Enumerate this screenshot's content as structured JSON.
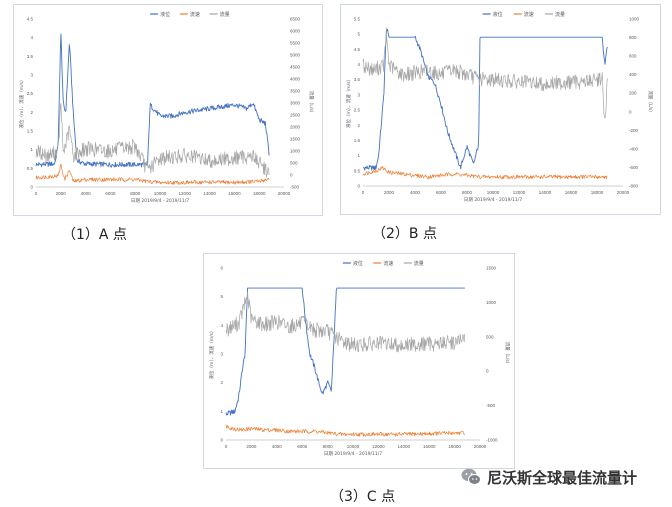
{
  "captions": {
    "a": "（1）A 点",
    "b": "（2）B 点",
    "c": "（3）C 点"
  },
  "watermark": {
    "text": "尼沃斯全球最佳流量计",
    "logo_icon": "wechat-icon"
  },
  "colors": {
    "level": "#4472C4",
    "velocity": "#ED7D31",
    "flow": "#A5A5A5"
  },
  "chart_data": [
    {
      "id": "A",
      "type": "line",
      "legend": [
        "液位",
        "流速",
        "流量"
      ],
      "xlabel": "日期 2019/9/4 - 2019/11/7",
      "ylabel_left": "液位（m）、流速（m/s）",
      "ylabel_right": "流量（L/s）",
      "xlim": [
        0,
        20000
      ],
      "x_ticks": [
        "0",
        "2000",
        "4000",
        "6000",
        "8000",
        "10000",
        "12000",
        "14000",
        "16000",
        "18000",
        "20000"
      ],
      "ylim_left": [
        0,
        4.5
      ],
      "y_ticks_left": [
        "0",
        "0.5",
        "1",
        "1.5",
        "2",
        "2.5",
        "3",
        "3.5",
        "4",
        "4.5"
      ],
      "ylim_right": [
        -500,
        6500
      ],
      "y_ticks_right": [
        "-500",
        "0",
        "500",
        "1000",
        "1500",
        "2000",
        "2500",
        "3000",
        "3500",
        "4000",
        "4500",
        "5000",
        "5500",
        "6000",
        "6500"
      ],
      "series": [
        {
          "name": "液位",
          "axis": "left",
          "points": [
            [
              0,
              0.6
            ],
            [
              1500,
              0.62
            ],
            [
              1800,
              1.2
            ],
            [
              2000,
              4.2
            ],
            [
              2200,
              2.2
            ],
            [
              2400,
              2.0
            ],
            [
              2700,
              3.9
            ],
            [
              3000,
              2.0
            ],
            [
              3300,
              0.7
            ],
            [
              4000,
              0.62
            ],
            [
              6000,
              0.6
            ],
            [
              8000,
              0.6
            ],
            [
              9000,
              0.6
            ],
            [
              9200,
              2.2
            ],
            [
              10000,
              1.9
            ],
            [
              11000,
              1.9
            ],
            [
              12000,
              2.0
            ],
            [
              13000,
              2.05
            ],
            [
              14000,
              2.1
            ],
            [
              15000,
              2.15
            ],
            [
              16000,
              2.2
            ],
            [
              17000,
              2.1
            ],
            [
              17500,
              2.25
            ],
            [
              18000,
              1.8
            ],
            [
              18500,
              1.7
            ],
            [
              18800,
              0.9
            ]
          ]
        },
        {
          "name": "流速",
          "axis": "left",
          "points": [
            [
              0,
              0.25
            ],
            [
              1800,
              0.3
            ],
            [
              2000,
              0.6
            ],
            [
              2300,
              0.2
            ],
            [
              2700,
              0.45
            ],
            [
              3000,
              0.15
            ],
            [
              4000,
              0.2
            ],
            [
              6000,
              0.2
            ],
            [
              8000,
              0.2
            ],
            [
              9000,
              0.15
            ],
            [
              10000,
              0.12
            ],
            [
              12000,
              0.12
            ],
            [
              14000,
              0.13
            ],
            [
              16000,
              0.12
            ],
            [
              18000,
              0.15
            ],
            [
              18800,
              0.22
            ]
          ]
        },
        {
          "name": "流量",
          "axis": "right",
          "points": [
            [
              0,
              1000
            ],
            [
              1000,
              800
            ],
            [
              1800,
              1000
            ],
            [
              2000,
              3000
            ],
            [
              2200,
              900
            ],
            [
              2700,
              1900
            ],
            [
              3000,
              800
            ],
            [
              4000,
              1100
            ],
            [
              6000,
              1000
            ],
            [
              8000,
              1200
            ],
            [
              9000,
              200
            ],
            [
              10000,
              700
            ],
            [
              12000,
              800
            ],
            [
              14000,
              600
            ],
            [
              16000,
              700
            ],
            [
              17500,
              800
            ],
            [
              18000,
              500
            ],
            [
              18800,
              100
            ]
          ]
        }
      ]
    },
    {
      "id": "B",
      "type": "line",
      "legend": [
        "液位",
        "流速",
        "流量"
      ],
      "xlabel": "日期 2019/9/4 - 2019/11/7",
      "ylabel_left": "液位（m）、流速（m/s）",
      "ylabel_right": "流量（L/s）",
      "xlim": [
        0,
        20000
      ],
      "x_ticks": [
        "0",
        "2000",
        "4000",
        "6000",
        "8000",
        "10000",
        "12000",
        "14000",
        "16000",
        "18000",
        "20000"
      ],
      "ylim_left": [
        0,
        5.5
      ],
      "y_ticks_left": [
        "0",
        "0.5",
        "1",
        "1.5",
        "2",
        "2.5",
        "3",
        "3.5",
        "4",
        "4.5",
        "5",
        "5.5"
      ],
      "ylim_right": [
        -800,
        1000
      ],
      "y_ticks_right": [
        "-800",
        "-600",
        "-400",
        "-200",
        "0",
        "200",
        "400",
        "600",
        "800",
        "1000"
      ],
      "series": [
        {
          "name": "液位",
          "axis": "left",
          "points": [
            [
              0,
              0.6
            ],
            [
              1000,
              0.6
            ],
            [
              1200,
              1.0
            ],
            [
              1600,
              3.0
            ],
            [
              1800,
              5.2
            ],
            [
              2000,
              4.9
            ],
            [
              3000,
              4.9
            ],
            [
              4000,
              4.9
            ],
            [
              4400,
              4.5
            ],
            [
              5000,
              3.6
            ],
            [
              5500,
              3.4
            ],
            [
              6000,
              2.7
            ],
            [
              6500,
              1.8
            ],
            [
              7000,
              1.2
            ],
            [
              7500,
              0.6
            ],
            [
              8000,
              1.3
            ],
            [
              8500,
              0.7
            ],
            [
              8900,
              1.4
            ],
            [
              9000,
              4.9
            ],
            [
              10000,
              4.9
            ],
            [
              12000,
              4.9
            ],
            [
              14000,
              4.9
            ],
            [
              16000,
              4.9
            ],
            [
              18000,
              4.9
            ],
            [
              18400,
              4.9
            ],
            [
              18600,
              4.0
            ],
            [
              18800,
              4.6
            ]
          ]
        },
        {
          "name": "流速",
          "axis": "left",
          "points": [
            [
              0,
              0.4
            ],
            [
              1000,
              0.5
            ],
            [
              1500,
              0.6
            ],
            [
              2000,
              0.45
            ],
            [
              3000,
              0.4
            ],
            [
              4000,
              0.35
            ],
            [
              5000,
              0.3
            ],
            [
              6000,
              0.35
            ],
            [
              7000,
              0.4
            ],
            [
              8000,
              0.35
            ],
            [
              9000,
              0.3
            ],
            [
              12000,
              0.3
            ],
            [
              15000,
              0.3
            ],
            [
              18000,
              0.3
            ],
            [
              18800,
              0.3
            ]
          ]
        },
        {
          "name": "流量",
          "axis": "right",
          "points": [
            [
              0,
              500
            ],
            [
              800,
              450
            ],
            [
              1600,
              500
            ],
            [
              1800,
              850
            ],
            [
              2000,
              500
            ],
            [
              3000,
              400
            ],
            [
              4000,
              420
            ],
            [
              5000,
              450
            ],
            [
              6000,
              400
            ],
            [
              7000,
              450
            ],
            [
              8000,
              400
            ],
            [
              9000,
              350
            ],
            [
              10000,
              350
            ],
            [
              12000,
              320
            ],
            [
              14000,
              300
            ],
            [
              15000,
              310
            ],
            [
              16000,
              320
            ],
            [
              17000,
              330
            ],
            [
              18000,
              340
            ],
            [
              18400,
              380
            ],
            [
              18600,
              -180
            ],
            [
              18800,
              350
            ]
          ]
        }
      ]
    },
    {
      "id": "C",
      "type": "line",
      "legend": [
        "液位",
        "流速",
        "流量"
      ],
      "xlabel": "日期 2019/9/4 - 2019/11/7",
      "ylabel_left": "液位（m）、流速（m/s）",
      "ylabel_right": "流量（L/s）",
      "xlim": [
        0,
        20000
      ],
      "x_ticks": [
        "0",
        "2000",
        "4000",
        "6000",
        "8000",
        "10000",
        "12000",
        "14000",
        "16000",
        "18000",
        "20000"
      ],
      "ylim_left": [
        0,
        6
      ],
      "y_ticks_left": [
        "0",
        "1",
        "2",
        "3",
        "4",
        "5",
        "6"
      ],
      "ylim_right": [
        -1000,
        1500
      ],
      "y_ticks_right": [
        "-1000",
        "-500",
        "0",
        "500",
        "1000",
        "1500"
      ],
      "series": [
        {
          "name": "液位",
          "axis": "left",
          "points": [
            [
              0,
              0.9
            ],
            [
              700,
              1.0
            ],
            [
              1000,
              1.5
            ],
            [
              1300,
              2.5
            ],
            [
              1500,
              3.0
            ],
            [
              1700,
              5.3
            ],
            [
              2000,
              5.3
            ],
            [
              4000,
              5.3
            ],
            [
              6000,
              5.3
            ],
            [
              6300,
              4.0
            ],
            [
              6600,
              3.0
            ],
            [
              7000,
              2.5
            ],
            [
              7300,
              2.0
            ],
            [
              7600,
              1.6
            ],
            [
              8000,
              2.0
            ],
            [
              8300,
              1.7
            ],
            [
              8700,
              5.3
            ],
            [
              10000,
              5.3
            ],
            [
              12000,
              5.3
            ],
            [
              14000,
              5.3
            ],
            [
              16000,
              5.3
            ],
            [
              18000,
              5.3
            ],
            [
              18800,
              5.3
            ]
          ]
        },
        {
          "name": "流速",
          "axis": "left",
          "points": [
            [
              0,
              0.5
            ],
            [
              500,
              0.4
            ],
            [
              1200,
              0.35
            ],
            [
              2000,
              0.4
            ],
            [
              3000,
              0.35
            ],
            [
              4000,
              0.35
            ],
            [
              5000,
              0.3
            ],
            [
              6000,
              0.3
            ],
            [
              7000,
              0.3
            ],
            [
              8000,
              0.25
            ],
            [
              9000,
              0.2
            ],
            [
              10000,
              0.2
            ],
            [
              12000,
              0.2
            ],
            [
              14000,
              0.2
            ],
            [
              16000,
              0.22
            ],
            [
              18000,
              0.25
            ],
            [
              18800,
              0.25
            ]
          ]
        },
        {
          "name": "流量",
          "axis": "right",
          "points": [
            [
              0,
              600
            ],
            [
              1000,
              700
            ],
            [
              1700,
              1100
            ],
            [
              2000,
              750
            ],
            [
              3000,
              680
            ],
            [
              4000,
              720
            ],
            [
              5000,
              650
            ],
            [
              6000,
              700
            ],
            [
              7000,
              600
            ],
            [
              8000,
              580
            ],
            [
              9000,
              450
            ],
            [
              10000,
              380
            ],
            [
              12000,
              400
            ],
            [
              14000,
              380
            ],
            [
              16000,
              400
            ],
            [
              18000,
              420
            ],
            [
              18800,
              460
            ]
          ]
        }
      ]
    }
  ]
}
